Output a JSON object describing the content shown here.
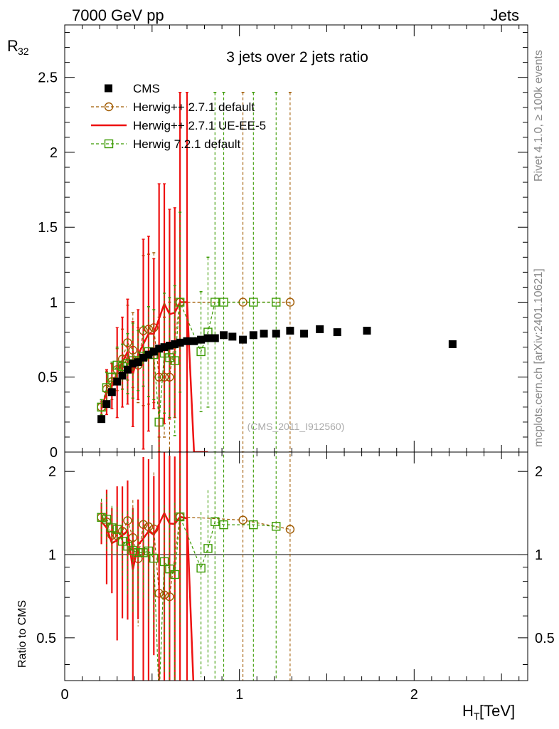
{
  "header": {
    "left": "7000 GeV pp",
    "right": "Jets",
    "side_top": "Rivet 4.1.0, ≥ 100k events",
    "side_bottom": "mcplots.cern.ch [arXiv:2401.10621]"
  },
  "main": {
    "title": "3 jets over 2 jets ratio",
    "watermark": "(CMS_2011_I912560)",
    "ylabel": "R",
    "ylabel_sub": "32",
    "yticks": [
      0,
      0.5,
      1,
      1.5,
      2,
      2.5
    ],
    "ytick_labels": [
      "0",
      "0.5",
      "1",
      "1.5",
      "2",
      "2.5"
    ]
  },
  "ratio": {
    "ylabel": "Ratio to CMS",
    "yticks": [
      0.5,
      1,
      2
    ],
    "ytick_labels": [
      "0.5",
      "1",
      "2"
    ]
  },
  "xaxis": {
    "label": "H",
    "label_sub": "T",
    "label_unit": " [TeV]",
    "ticks": [
      0,
      1,
      2
    ],
    "tick_labels": [
      "0",
      "1",
      "2"
    ]
  },
  "chart_data": {
    "type": "scatter",
    "title": "3 jets over 2 jets ratio",
    "xlabel": "H_T [TeV]",
    "ylabel": "R_32",
    "xlim": [
      0,
      2.65
    ],
    "ylim": [
      0,
      2.85
    ],
    "ratio_ylim": [
      0.35,
      2.35
    ],
    "legend_position": "top-left",
    "series": [
      {
        "name": "CMS",
        "color": "#000000",
        "style": "data",
        "x": [
          0.21,
          0.24,
          0.27,
          0.3,
          0.33,
          0.36,
          0.39,
          0.42,
          0.45,
          0.48,
          0.51,
          0.54,
          0.57,
          0.6,
          0.63,
          0.66,
          0.7,
          0.74,
          0.78,
          0.82,
          0.86,
          0.91,
          0.96,
          1.02,
          1.08,
          1.14,
          1.21,
          1.29,
          1.37,
          1.46,
          1.56,
          1.73,
          2.22
        ],
        "y": [
          0.22,
          0.32,
          0.4,
          0.47,
          0.51,
          0.55,
          0.59,
          0.6,
          0.63,
          0.65,
          0.67,
          0.69,
          0.7,
          0.71,
          0.72,
          0.73,
          0.74,
          0.74,
          0.75,
          0.76,
          0.76,
          0.78,
          0.77,
          0.75,
          0.78,
          0.79,
          0.79,
          0.81,
          0.79,
          0.82,
          0.8,
          0.81,
          0.72
        ]
      },
      {
        "name": "Herwig++ 2.7.1 default",
        "color": "#a05a00",
        "style": "dashed-circle",
        "x": [
          0.21,
          0.24,
          0.27,
          0.3,
          0.33,
          0.36,
          0.39,
          0.42,
          0.45,
          0.48,
          0.51,
          0.54,
          0.57,
          0.6,
          0.66,
          1.02,
          1.29
        ],
        "y": [
          0.3,
          0.42,
          0.47,
          0.55,
          0.62,
          0.73,
          0.68,
          0.58,
          0.81,
          0.82,
          0.83,
          0.5,
          0.5,
          0.5,
          1.0,
          1.0,
          1.0
        ],
        "yerr": [
          0.05,
          0.12,
          0.12,
          0.14,
          0.2,
          0.25,
          0.25,
          0.25,
          0.5,
          0.5,
          0.5,
          0.4,
          0.4,
          0.5,
          1.4,
          1.4,
          1.4
        ]
      },
      {
        "name": "Herwig++ 2.7.1 UE-EE-5",
        "color": "#ee1111",
        "style": "solid",
        "x": [
          0.21,
          0.24,
          0.27,
          0.3,
          0.33,
          0.36,
          0.39,
          0.42,
          0.45,
          0.48,
          0.51,
          0.54,
          0.57,
          0.6,
          0.63,
          0.66,
          0.7,
          0.74,
          0.78,
          0.82
        ],
        "y": [
          0.29,
          0.4,
          0.44,
          0.53,
          0.6,
          0.67,
          0.52,
          0.65,
          0.72,
          0.79,
          0.79,
          0.89,
          0.99,
          0.92,
          0.93,
          1.0,
          1.0,
          0.0,
          0.0,
          0.0
        ],
        "yerr": [
          0.05,
          0.15,
          0.15,
          0.3,
          0.3,
          0.35,
          0.35,
          0.3,
          0.7,
          0.65,
          0.5,
          0.9,
          0.8,
          0.7,
          0.7,
          1.4,
          1.4,
          0,
          0,
          0
        ]
      },
      {
        "name": "Herwig 7.2.1 default",
        "color": "#3a9a00",
        "style": "dashed-square",
        "x": [
          0.21,
          0.24,
          0.27,
          0.3,
          0.33,
          0.36,
          0.39,
          0.42,
          0.45,
          0.48,
          0.51,
          0.54,
          0.57,
          0.6,
          0.63,
          0.66,
          0.78,
          0.82,
          0.86,
          0.91,
          1.08,
          1.21
        ],
        "y": [
          0.3,
          0.43,
          0.5,
          0.58,
          0.57,
          0.59,
          0.61,
          0.61,
          0.64,
          0.67,
          0.65,
          0.2,
          0.66,
          0.63,
          0.61,
          1.0,
          0.67,
          0.8,
          1.0,
          1.0,
          1.0,
          1.0
        ],
        "yerr": [
          0.05,
          0.1,
          0.1,
          0.12,
          0.15,
          0.2,
          0.25,
          0.2,
          0.2,
          0.3,
          0.3,
          0.3,
          0.4,
          0.4,
          0.5,
          0.6,
          0.4,
          0.5,
          1.4,
          1.4,
          1.4,
          1.4
        ]
      }
    ]
  }
}
